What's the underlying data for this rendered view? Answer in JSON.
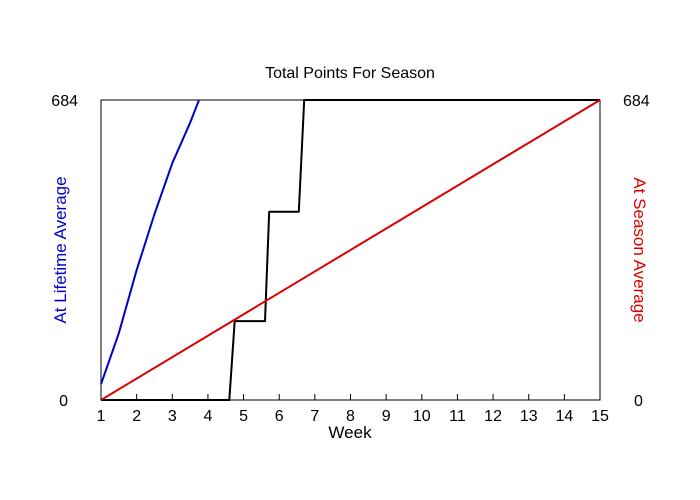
{
  "chart_data": {
    "type": "line",
    "title": "Total Points For Season",
    "xlabel": "Week",
    "ylabel_left": "At Lifetime Average",
    "ylabel_right": "At Season Average",
    "x_ticks": [
      1,
      2,
      3,
      4,
      5,
      6,
      7,
      8,
      9,
      10,
      11,
      12,
      13,
      14,
      15
    ],
    "x_tick_labels": [
      "1",
      "2",
      "3",
      "4",
      "5",
      "6",
      "7",
      "8",
      "9",
      "10",
      "11",
      "12",
      "13",
      "14",
      "15"
    ],
    "xlim": [
      1,
      15
    ],
    "ylim": [
      0,
      684
    ],
    "y_left_tick_labels": [
      "0",
      "684"
    ],
    "y_right_tick_labels": [
      "0",
      "684"
    ],
    "grid": false,
    "series": [
      {
        "color": "#0000cc",
        "points": [
          [
            1,
            36
          ],
          [
            1.5,
            152
          ],
          [
            2,
            296
          ],
          [
            2.5,
            424
          ],
          [
            3,
            540
          ],
          [
            3.5,
            632
          ],
          [
            3.75,
            684
          ]
        ]
      },
      {
        "color": "#000000",
        "step": true,
        "points": [
          [
            1,
            0
          ],
          [
            4.6,
            0
          ],
          [
            4.75,
            180
          ],
          [
            5.6,
            180
          ],
          [
            5.72,
            429
          ],
          [
            6.55,
            429
          ],
          [
            6.7,
            684
          ],
          [
            15,
            684
          ]
        ]
      },
      {
        "color": "#dd0000",
        "points": [
          [
            1,
            0
          ],
          [
            15,
            684
          ]
        ]
      }
    ]
  }
}
